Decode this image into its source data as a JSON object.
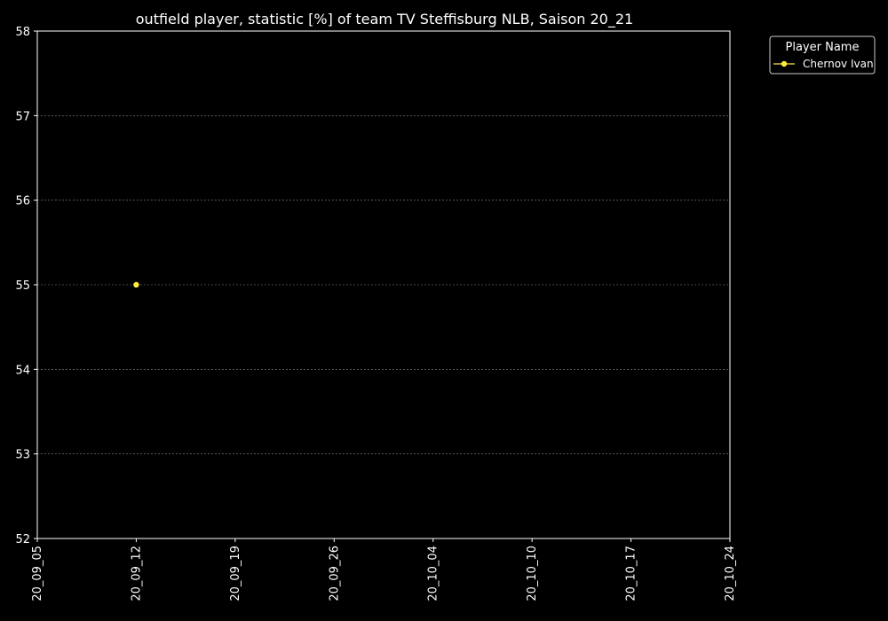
{
  "chart_data": {
    "type": "line",
    "title": "outfield player, statistic [%] of team TV Steffisburg NLB, Saison 20_21",
    "xlabel": "",
    "ylabel": "",
    "x_ticks": [
      "20_09_05",
      "20_09_12",
      "20_09_19",
      "20_09_26",
      "20_10_04",
      "20_10_10",
      "20_10_17",
      "20_10_24"
    ],
    "y_ticks": [
      "52",
      "53",
      "54",
      "55",
      "56",
      "57",
      "58"
    ],
    "ylim": [
      52,
      58
    ],
    "grid": true,
    "legend": {
      "title": "Player Name",
      "placement": "outside-top-right"
    },
    "series": [
      {
        "name": "Chernov Ivan",
        "color": "#ffeb3b",
        "points": [
          {
            "x": "20_09_12",
            "y": 55
          }
        ]
      }
    ]
  },
  "colors": {
    "background": "#000000",
    "foreground": "#ffffff",
    "grid": "#888888"
  }
}
